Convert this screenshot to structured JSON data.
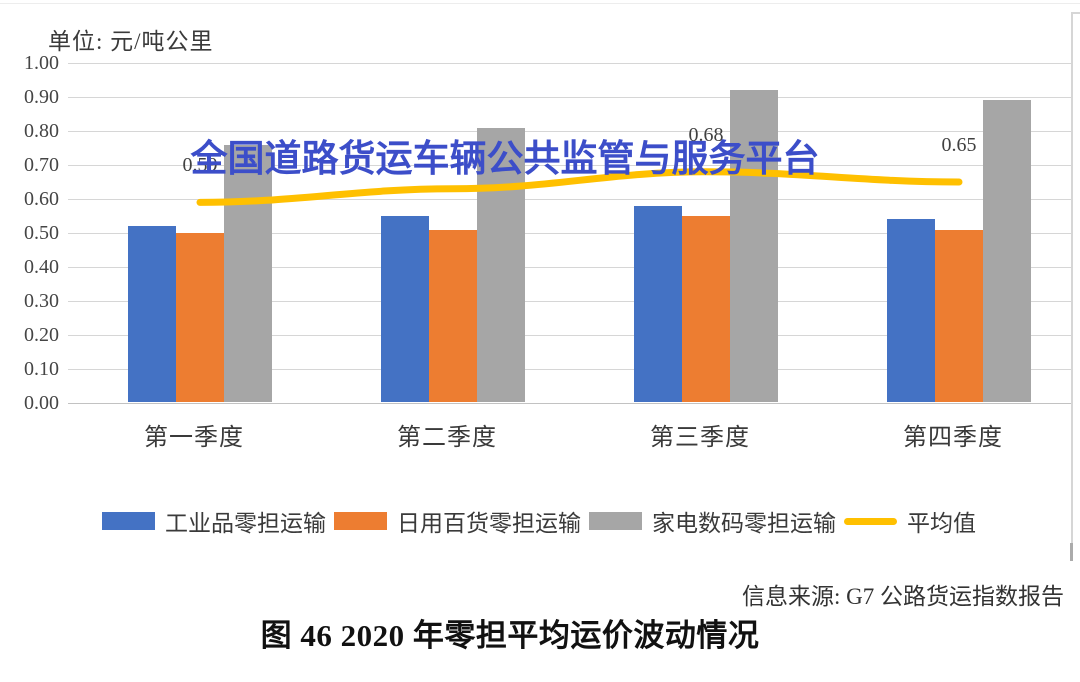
{
  "unit_label": "单位: 元/吨公里",
  "watermark": "全国道路货运车辆公共监管与服务平台",
  "source": "信息来源: G7 公路货运指数报告",
  "caption": "图 46  2020 年零担平均运价波动情况",
  "chart_data": {
    "type": "bar",
    "categories": [
      "第一季度",
      "第二季度",
      "第三季度",
      "第四季度"
    ],
    "series": [
      {
        "name": "工业品零担运输",
        "type": "bar",
        "color": "#4472C4",
        "values": [
          0.52,
          0.55,
          0.58,
          0.54
        ]
      },
      {
        "name": "日用百货零担运输",
        "type": "bar",
        "color": "#ED7D31",
        "values": [
          0.5,
          0.51,
          0.55,
          0.51
        ]
      },
      {
        "name": "家电数码零担运输",
        "type": "bar",
        "color": "#A6A6A6",
        "values": [
          0.76,
          0.81,
          0.92,
          0.89
        ]
      },
      {
        "name": "平均值",
        "type": "line",
        "color": "#FFC000",
        "values": [
          0.59,
          0.63,
          0.68,
          0.65
        ],
        "labels": [
          "0.59",
          "",
          "0.68",
          "0.65"
        ]
      }
    ],
    "ylim": [
      0,
      1
    ],
    "ytick_step": 0.1,
    "ytick_labels": [
      "0.00",
      "0.10",
      "0.20",
      "0.30",
      "0.40",
      "0.50",
      "0.60",
      "0.70",
      "0.80",
      "0.90",
      "1.00"
    ],
    "grid": true,
    "legend_position": "bottom"
  }
}
